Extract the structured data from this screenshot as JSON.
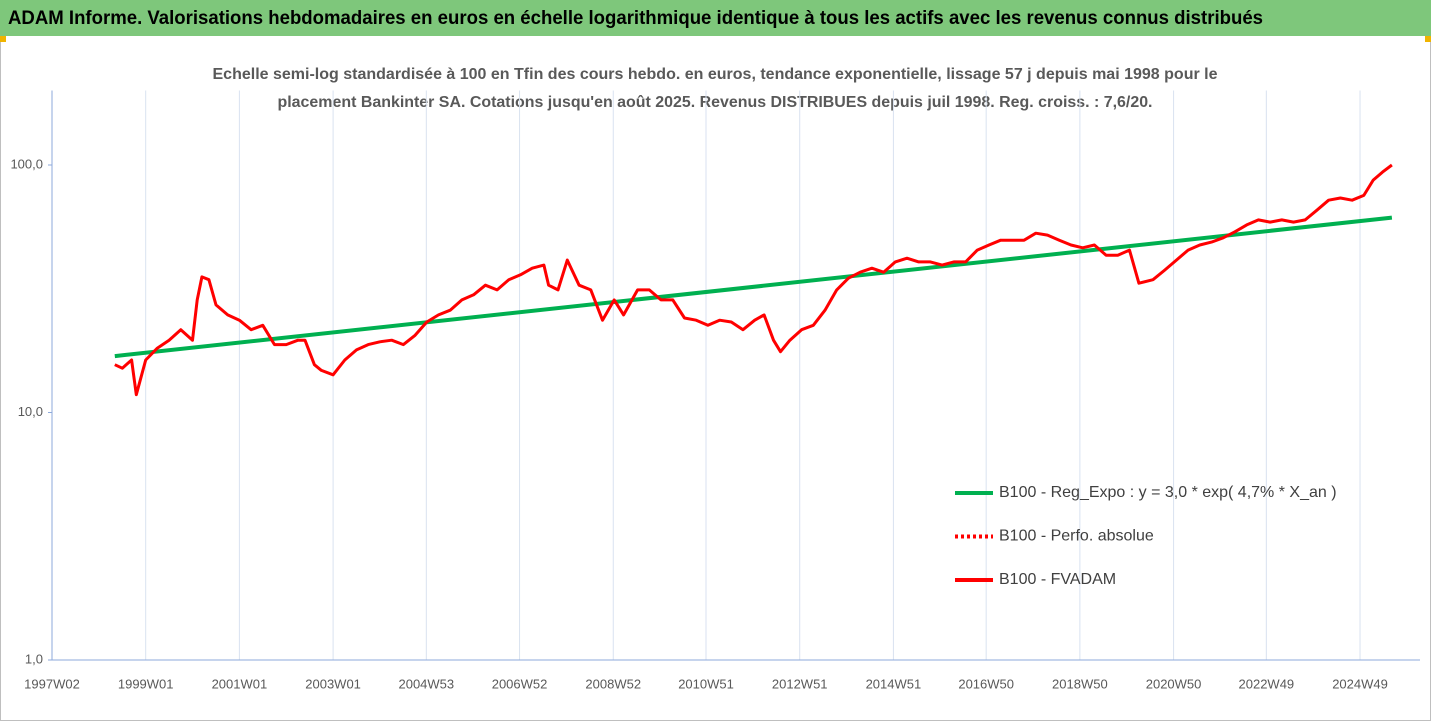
{
  "chart_data": {
    "type": "line",
    "title": "ADAM Informe. Valorisations hebdomadaires en euros en échelle logarithmique identique à tous les actifs avec les revenus connus distribués",
    "subtitle": [
      "Echelle semi-log standardisée à 100 en Tfin des cours hebdo. en euros, tendance exponentielle, lissage 57 j depuis mai 1998 pour le",
      "placement Bankinter SA. Cotations jusqu'en août 2025. Revenus DISTRIBUES depuis juil 1998. Reg. croiss. : 7,6/20."
    ],
    "log_scale": true,
    "grid": "x",
    "legend": "right",
    "xlim": [
      1997.0,
      2026.2
    ],
    "ylim": [
      1,
      200
    ],
    "yticks": [
      {
        "value": 1,
        "label": "1,0"
      },
      {
        "value": 10,
        "label": "10,0"
      },
      {
        "value": 100,
        "label": "100,0"
      }
    ],
    "xticks": [
      {
        "value": 1997.0,
        "label": "1997W02"
      },
      {
        "value": 1999.0,
        "label": "1999W01"
      },
      {
        "value": 2001.0,
        "label": "2001W01"
      },
      {
        "value": 2003.0,
        "label": "2003W01"
      },
      {
        "value": 2004.99,
        "label": "2004W53"
      },
      {
        "value": 2006.98,
        "label": "2006W52"
      },
      {
        "value": 2008.98,
        "label": "2008W52"
      },
      {
        "value": 2010.96,
        "label": "2010W51"
      },
      {
        "value": 2012.96,
        "label": "2012W51"
      },
      {
        "value": 2014.96,
        "label": "2014W51"
      },
      {
        "value": 2016.94,
        "label": "2016W50"
      },
      {
        "value": 2018.94,
        "label": "2018W50"
      },
      {
        "value": 2020.94,
        "label": "2020W50"
      },
      {
        "value": 2022.92,
        "label": "2022W49"
      },
      {
        "value": 2024.92,
        "label": "2024W49"
      }
    ],
    "series": [
      {
        "name": "B100 - Reg_Expo : y = 3,0 * exp( 4,7% *  X_an )",
        "color": "#00b050",
        "style": "solid",
        "x": [
          1998.34,
          2025.6
        ],
        "values": [
          16.9,
          61.3
        ]
      },
      {
        "name": "B100 - Perfo. absolue",
        "color": "#ff0000",
        "style": "dotted",
        "x": [],
        "values": []
      },
      {
        "name": "B100 - FVADAM",
        "color": "#ff0000",
        "style": "solid",
        "x": [
          1998.34,
          1998.5,
          1998.7,
          1998.8,
          1999.0,
          1999.25,
          1999.5,
          1999.75,
          2000.0,
          2000.1,
          2000.2,
          2000.35,
          2000.5,
          2000.75,
          2001.0,
          2001.25,
          2001.5,
          2001.75,
          2002.0,
          2002.25,
          2002.4,
          2002.6,
          2002.75,
          2003.0,
          2003.25,
          2003.5,
          2003.75,
          2004.0,
          2004.25,
          2004.5,
          2004.75,
          2005.0,
          2005.25,
          2005.5,
          2005.75,
          2006.0,
          2006.25,
          2006.5,
          2006.75,
          2007.0,
          2007.25,
          2007.5,
          2007.6,
          2007.8,
          2008.0,
          2008.25,
          2008.5,
          2008.75,
          2009.0,
          2009.2,
          2009.5,
          2009.75,
          2010.0,
          2010.25,
          2010.5,
          2010.75,
          2011.0,
          2011.25,
          2011.5,
          2011.75,
          2012.0,
          2012.2,
          2012.4,
          2012.55,
          2012.75,
          2013.0,
          2013.25,
          2013.5,
          2013.75,
          2014.0,
          2014.25,
          2014.5,
          2014.75,
          2015.0,
          2015.25,
          2015.5,
          2015.75,
          2016.0,
          2016.25,
          2016.5,
          2016.75,
          2017.0,
          2017.25,
          2017.5,
          2017.75,
          2018.0,
          2018.25,
          2018.5,
          2018.75,
          2019.0,
          2019.25,
          2019.5,
          2019.75,
          2020.0,
          2020.2,
          2020.5,
          2020.75,
          2021.0,
          2021.25,
          2021.5,
          2021.75,
          2022.0,
          2022.25,
          2022.5,
          2022.75,
          2023.0,
          2023.25,
          2023.5,
          2023.75,
          2024.0,
          2024.25,
          2024.5,
          2024.75,
          2025.0,
          2025.2,
          2025.4,
          2025.6
        ],
        "values": [
          15.6,
          15.1,
          16.3,
          11.8,
          16.3,
          18.2,
          19.6,
          21.6,
          19.6,
          28.5,
          35.3,
          34.4,
          27.2,
          24.8,
          23.6,
          21.6,
          22.5,
          18.8,
          18.8,
          19.6,
          19.6,
          15.6,
          14.8,
          14.2,
          16.3,
          17.9,
          18.8,
          19.3,
          19.6,
          18.8,
          20.5,
          23.2,
          24.8,
          25.9,
          28.5,
          29.9,
          32.7,
          31.3,
          34.4,
          36.0,
          38.3,
          39.4,
          32.7,
          31.3,
          41.3,
          32.7,
          31.3,
          23.6,
          28.5,
          24.8,
          31.3,
          31.3,
          28.5,
          28.5,
          24.1,
          23.6,
          22.5,
          23.6,
          23.2,
          21.6,
          23.6,
          24.8,
          19.6,
          17.6,
          19.6,
          21.6,
          22.5,
          25.9,
          31.3,
          34.9,
          36.9,
          38.3,
          36.9,
          40.6,
          42.0,
          40.6,
          40.6,
          39.4,
          40.6,
          40.6,
          45.3,
          47.5,
          49.7,
          49.7,
          49.7,
          53.0,
          52.1,
          49.7,
          47.5,
          46.3,
          47.5,
          43.2,
          43.2,
          45.3,
          33.3,
          34.4,
          37.6,
          41.3,
          45.3,
          47.5,
          48.8,
          50.8,
          53.7,
          57.3,
          60.0,
          58.8,
          60.0,
          58.8,
          60.0,
          65.7,
          72.1,
          73.6,
          72.1,
          75.4,
          86.9,
          93.6,
          100
        ]
      }
    ]
  }
}
